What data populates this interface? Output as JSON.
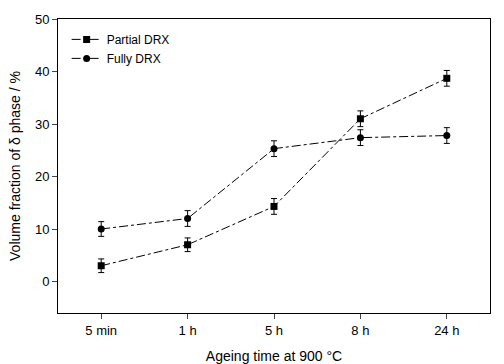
{
  "chart_data": {
    "type": "line",
    "x_label": "Ageing time at 900 °C",
    "y_label": "Volume fraction of δ phase / %",
    "categories": [
      "5 min",
      "1 h",
      "5 h",
      "8 h",
      "24 h"
    ],
    "ylim": [
      -6,
      50
    ],
    "yticks": [
      0,
      10,
      20,
      30,
      40,
      50
    ],
    "grid": false,
    "legend": "top-left",
    "series": [
      {
        "name": "Partial DRX",
        "color": "#000000",
        "marker": "square",
        "line_style": "dashdot",
        "values": [
          3,
          7,
          14.3,
          31,
          38.7
        ],
        "errors": [
          1.3,
          1.3,
          1.5,
          1.5,
          1.5
        ]
      },
      {
        "name": "Fully DRX",
        "color": "#000000",
        "marker": "circle",
        "line_style": "dashdot",
        "values": [
          10,
          12,
          25.3,
          27.4,
          27.8
        ],
        "errors": [
          1.4,
          1.5,
          1.5,
          1.5,
          1.5
        ]
      }
    ]
  }
}
